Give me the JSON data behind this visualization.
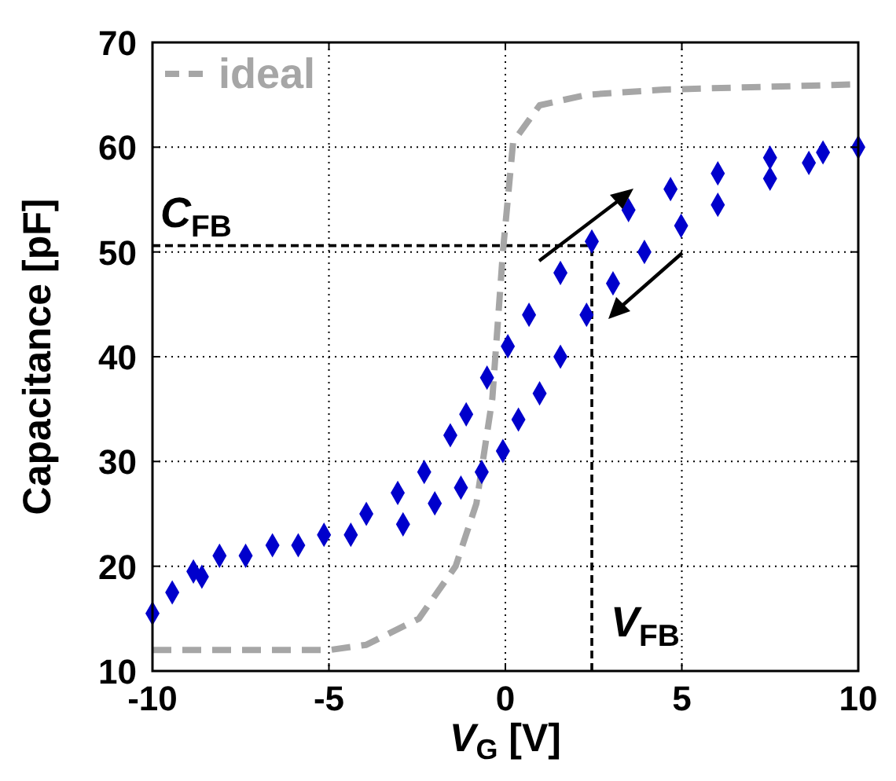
{
  "chart_data": {
    "type": "line",
    "xlabel": "V$_{G}$  [V]",
    "ylabel": "Capacitance [pF]",
    "xlim": [
      -10,
      10
    ],
    "ylim": [
      10,
      70
    ],
    "xticks": [
      -10,
      -5,
      0,
      5,
      10
    ],
    "yticks": [
      10,
      20,
      30,
      40,
      50,
      60,
      70
    ],
    "grid": true,
    "legend": "top left",
    "series": [
      {
        "name": "ideal",
        "color": "#a6a6a6",
        "line_style": "dashed",
        "marker": "none",
        "x": [
          -10,
          -5,
          -3.94,
          -2.45,
          -1.41,
          -0.82,
          -0.37,
          -0.07,
          0.22,
          0.97,
          2.3,
          4.5,
          10
        ],
        "values": [
          12,
          12,
          12.5,
          15,
          20,
          26,
          36,
          50,
          60.5,
          64,
          65,
          65.5,
          66
        ]
      },
      {
        "type": "scatter",
        "color": "#0000cc",
        "marker": "diamond",
        "x": [
          -10,
          -9.44,
          -8.84,
          -8.1,
          -6.6,
          -5.14,
          -3.94,
          -3.05,
          -2.3,
          -1.56,
          -1.11,
          -0.52,
          0.07,
          0.67,
          1.56,
          2.45,
          3.49,
          4.68,
          6.02,
          7.5,
          9,
          10
        ],
        "values": [
          15.5,
          17.5,
          19.5,
          21,
          22,
          23,
          25,
          27,
          29,
          32.5,
          34.5,
          38,
          41,
          44,
          48,
          51,
          54,
          56,
          57.5,
          59,
          59.5,
          60
        ]
      },
      {
        "type": "scatter",
        "color": "#0000cc",
        "marker": "diamond",
        "x": [
          -8.6,
          -7.36,
          -5.87,
          -4.38,
          -2.9,
          -2,
          -1.26,
          -0.67,
          -0.07,
          0.37,
          0.97,
          1.56,
          2.3,
          3.05,
          3.94,
          4.98,
          6.02,
          7.5,
          8.6
        ],
        "values": [
          19,
          21,
          22,
          23,
          24,
          26,
          27.5,
          29,
          31,
          34,
          36.5,
          40,
          44,
          47,
          50,
          52.5,
          54.5,
          57,
          58.5
        ]
      }
    ],
    "ref_lines": [
      {
        "axis": "y",
        "value": 50.6,
        "label": "C$_{FB}$",
        "color": "#000000",
        "line_style": "dashed"
      },
      {
        "axis": "x",
        "value": 2.45,
        "label": "V$_{FB}$",
        "color": "#000000",
        "line_style": "dashed"
      }
    ]
  }
}
